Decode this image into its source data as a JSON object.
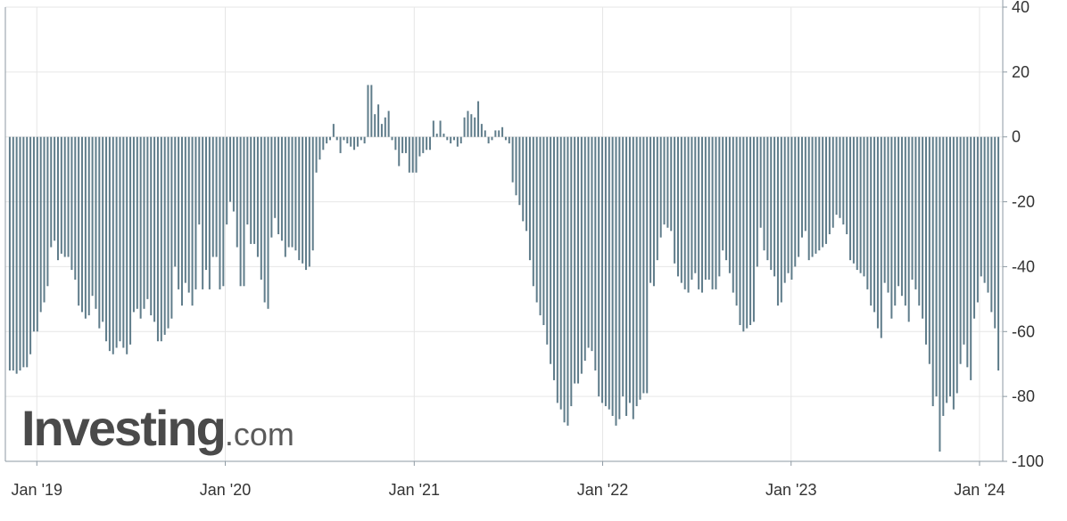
{
  "chart_data": {
    "type": "bar",
    "xlabel": "",
    "ylabel": "",
    "ylim": [
      -100,
      40
    ],
    "y_ticks": [
      40,
      20,
      0,
      -20,
      -40,
      -60,
      -80,
      -100
    ],
    "x_tick_labels": [
      "Jan '19",
      "Jan '20",
      "Jan '21",
      "Jan '22",
      "Jan '23",
      "Jan '24"
    ],
    "x_tick_dates": [
      "2019-01-01",
      "2020-01-01",
      "2021-01-01",
      "2022-01-01",
      "2023-01-01",
      "2024-01-01"
    ],
    "x_range": [
      "2018-11-01",
      "2024-02-15"
    ],
    "grid": true,
    "bar_color": "#607d8b",
    "grid_color": "#e6e6e6",
    "axis_color": "#8e9aa3",
    "series": [
      {
        "values": [
          -72,
          -72,
          -73,
          -72,
          -71,
          -71,
          -67,
          -60,
          -60,
          -54,
          -51,
          -46,
          -34,
          -32,
          -38,
          -36,
          -37,
          -37,
          -41,
          -44,
          -52,
          -54,
          -56,
          -55,
          -49,
          -53,
          -59,
          -57,
          -63,
          -66,
          -67,
          -65,
          -63,
          -65,
          -67,
          -64,
          -54,
          -53,
          -56,
          -53,
          -50,
          -55,
          -57,
          -63,
          -63,
          -61,
          -59,
          -56,
          -40,
          -47,
          -52,
          -45,
          -48,
          -52,
          -47,
          -27,
          -47,
          -41,
          -47,
          -37,
          -37,
          -47,
          -46,
          -27,
          -20,
          -23,
          -34,
          -46,
          -46,
          -27,
          -33,
          -33,
          -37,
          -44,
          -51,
          -53,
          -31,
          -25,
          -30,
          -32,
          -37,
          -34,
          -34,
          -35,
          -38,
          -39,
          -41,
          -40,
          -35,
          -11,
          -7,
          -4,
          -2,
          -1,
          4,
          -1,
          -5,
          -1,
          -2,
          -3,
          -4,
          -3,
          -1,
          -2,
          16,
          16,
          7,
          10,
          4,
          6,
          8,
          -1,
          -4,
          -9,
          -5,
          -5,
          -11,
          -11,
          -11,
          -6,
          -5,
          -4,
          -4,
          5,
          1,
          5,
          1,
          -1,
          -2,
          -1,
          -3,
          -2,
          6,
          8,
          7,
          6,
          11,
          4,
          2,
          -2,
          -1,
          2,
          2,
          3,
          -1,
          -2,
          -14,
          -18,
          -21,
          -26,
          -29,
          -38,
          -46,
          -51,
          -55,
          -58,
          -64,
          -70,
          -75,
          -82,
          -84,
          -88,
          -89,
          -83,
          -76,
          -76,
          -73,
          -69,
          -65,
          -66,
          -72,
          -80,
          -82,
          -83,
          -84,
          -86,
          -89,
          -87,
          -80,
          -86,
          -82,
          -87,
          -83,
          -81,
          -79,
          -79,
          -45,
          -46,
          -38,
          -31,
          -27,
          -28,
          -29,
          -39,
          -43,
          -45,
          -47,
          -48,
          -44,
          -42,
          -47,
          -48,
          -44,
          -44,
          -47,
          -47,
          -43,
          -35,
          -38,
          -42,
          -48,
          -52,
          -58,
          -60,
          -59,
          -58,
          -57,
          -40,
          -28,
          -35,
          -38,
          -41,
          -43,
          -52,
          -51,
          -45,
          -42,
          -44,
          -40,
          -37,
          -31,
          -29,
          -38,
          -37,
          -36,
          -35,
          -34,
          -33,
          -30,
          -28,
          -24,
          -25,
          -27,
          -30,
          -38,
          -39,
          -41,
          -42,
          -43,
          -47,
          -52,
          -54,
          -59,
          -62,
          -45,
          -48,
          -56,
          -52,
          -46,
          -49,
          -52,
          -57,
          -44,
          -47,
          -52,
          -56,
          -64,
          -70,
          -83,
          -80,
          -97,
          -86,
          -82,
          -80,
          -84,
          -79,
          -70,
          -64,
          -71,
          -75,
          -56,
          -51,
          -43,
          -45,
          -48,
          -54,
          -59,
          -72
        ]
      }
    ]
  },
  "watermark": {
    "brand": "Investing",
    "tld": ".com"
  }
}
